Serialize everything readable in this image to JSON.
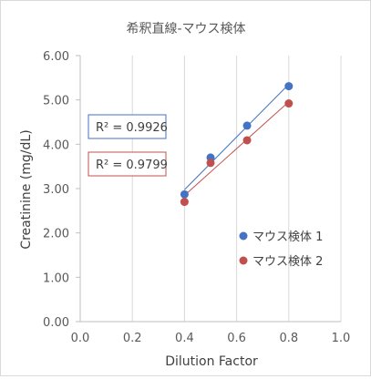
{
  "chart_data": {
    "type": "scatter",
    "title": "希釈直線-マウス検体",
    "xlabel": "Dilution Factor",
    "ylabel": "Creatinine (mg/dL)",
    "xlim": [
      0.0,
      1.0
    ],
    "ylim": [
      0.0,
      6.0
    ],
    "x_ticks": [
      "0.0",
      "0.2",
      "0.4",
      "0.6",
      "0.8",
      "1.0"
    ],
    "y_ticks": [
      "0.00",
      "1.00",
      "2.00",
      "3.00",
      "4.00",
      "5.00",
      "6.00"
    ],
    "grid": "vertical",
    "legend_position": "right",
    "series": [
      {
        "name": "マウス検体 1",
        "color": "#4472c4",
        "x": [
          0.4,
          0.5,
          0.64,
          0.8
        ],
        "y": [
          2.87,
          3.7,
          4.42,
          5.31
        ],
        "trendline": true,
        "r2_label": "R² = 0.9926"
      },
      {
        "name": "マウス検体 2",
        "color": "#c0504d",
        "x": [
          0.4,
          0.5,
          0.64,
          0.8
        ],
        "y": [
          2.7,
          3.58,
          4.09,
          4.92
        ],
        "trendline": true,
        "r2_label": "R² = 0.9799"
      }
    ]
  }
}
